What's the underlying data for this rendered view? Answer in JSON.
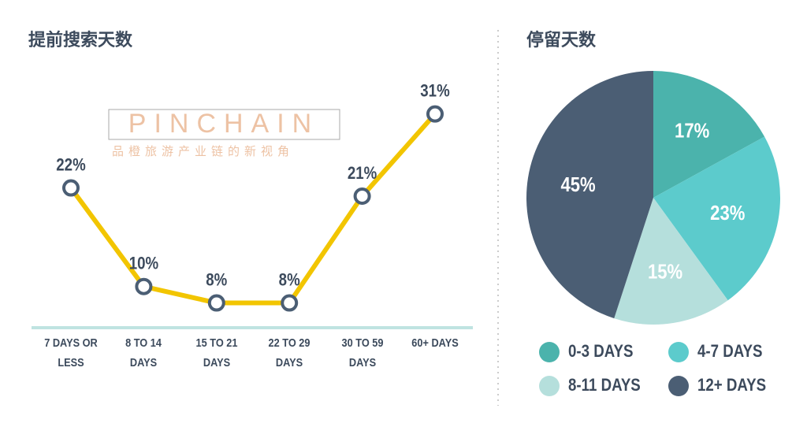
{
  "chart_data": [
    {
      "type": "line",
      "title": "提前搜索天数",
      "categories": [
        "7 DAYS OR LESS",
        "8 TO 14 DAYS",
        "15 TO 21 DAYS",
        "22 TO 29 DAYS",
        "30 TO 59 DAYS",
        "60+ DAYS"
      ],
      "values": [
        22,
        10,
        8,
        8,
        21,
        31
      ],
      "value_labels": [
        "22%",
        "10%",
        "8%",
        "8%",
        "21%",
        "31%"
      ],
      "color": "#f2c500",
      "marker_color": "#4b5e74"
    },
    {
      "type": "pie",
      "title": "停留天数",
      "categories": [
        "0-3 DAYS",
        "4-7 DAYS",
        "8-11 DAYS",
        "12+ DAYS"
      ],
      "values": [
        17,
        23,
        15,
        45
      ],
      "value_labels": [
        "17%",
        "23%",
        "15%",
        "45%"
      ],
      "colors": [
        "#4bb3ac",
        "#5ccbcc",
        "#b5dfdc",
        "#4b5e74"
      ]
    }
  ],
  "watermark": {
    "brand": "PINCHAIN",
    "tagline": "品橙旅游产业链的新视角"
  }
}
